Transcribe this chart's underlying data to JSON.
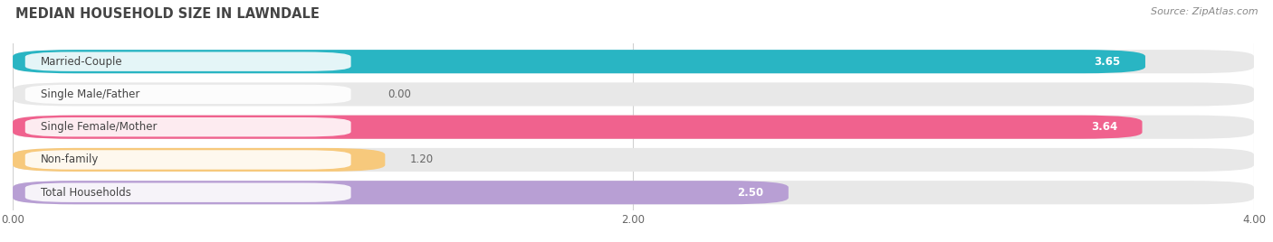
{
  "title": "MEDIAN HOUSEHOLD SIZE IN LAWNDALE",
  "source": "Source: ZipAtlas.com",
  "categories": [
    "Married-Couple",
    "Single Male/Father",
    "Single Female/Mother",
    "Non-family",
    "Total Households"
  ],
  "values": [
    3.65,
    0.0,
    3.64,
    1.2,
    2.5
  ],
  "bar_colors": [
    "#29b5c3",
    "#a8bce8",
    "#f0628e",
    "#f7c97c",
    "#b89fd4"
  ],
  "xlim": [
    0,
    4.0
  ],
  "xticks": [
    0.0,
    2.0,
    4.0
  ],
  "xtick_labels": [
    "0.00",
    "2.00",
    "4.00"
  ],
  "title_fontsize": 10.5,
  "source_fontsize": 8,
  "label_fontsize": 8.5,
  "value_fontsize": 8.5,
  "background_color": "#ffffff",
  "bar_background": "#e8e8e8",
  "grid_color": "#d0d0d0"
}
